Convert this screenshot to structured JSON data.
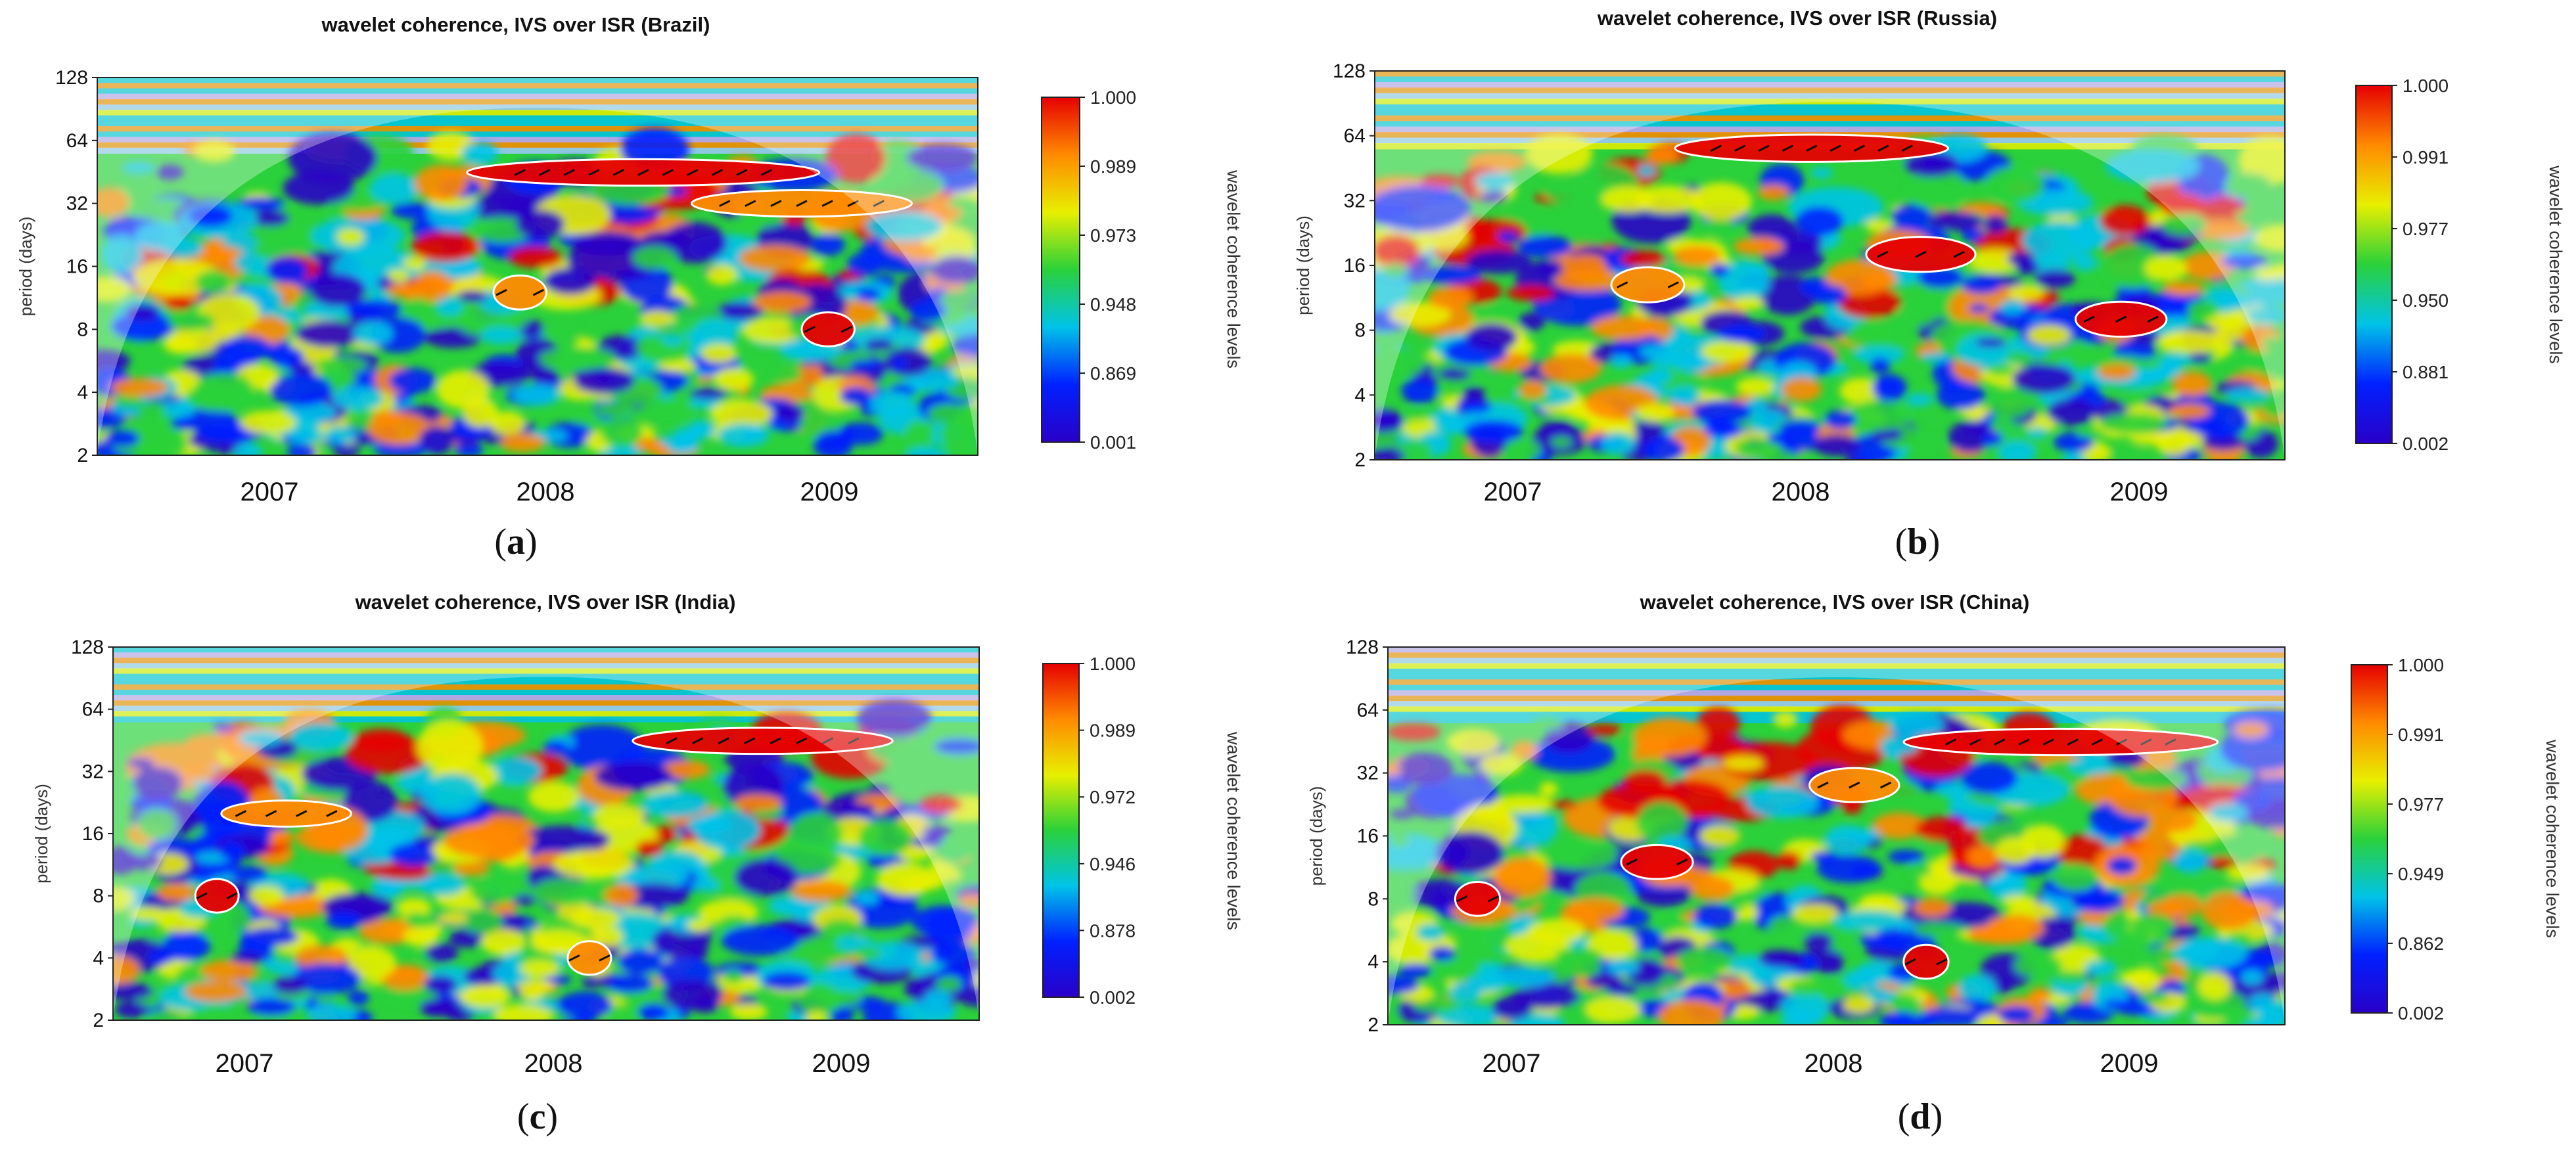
{
  "colors": {
    "max": "#e60000",
    "high": "#ff8a00",
    "mid_high": "#e8ef00",
    "mid": "#2ad13a",
    "mid_low": "#00c3e8",
    "low": "#0020ff",
    "min": "#2a00c8",
    "arrow": "#111111",
    "contour": "#ffffff"
  },
  "chart_data": [
    {
      "type": "heatmap",
      "title": "wavelet coherence, IVS over ISR (Brazil)",
      "ylabel": "period (days)",
      "colorbar_label": "wavelet coherence levels",
      "caption_letter": "a",
      "yticks": [
        "128",
        "64",
        "32",
        "16",
        "8",
        "4",
        "2"
      ],
      "ylim": [
        2,
        128
      ],
      "xticks": [
        "2007",
        "2008",
        "2009"
      ],
      "colorbar_ticks": [
        "1.000",
        "0.989",
        "0.973",
        "0.948",
        "0.869",
        "0.001"
      ],
      "features": [
        {
          "label": "band",
          "x": 0.62,
          "y": 45,
          "span": 0.4,
          "level": 1.0
        },
        {
          "label": "band",
          "x": 0.8,
          "y": 32,
          "span": 0.25,
          "level": 0.985
        },
        {
          "label": "blob",
          "x": 0.48,
          "y": 12,
          "span": 0.06,
          "level": 0.99
        },
        {
          "label": "blob",
          "x": 0.83,
          "y": 8,
          "span": 0.06,
          "level": 1.0
        }
      ]
    },
    {
      "type": "heatmap",
      "title": "wavelet coherence, IVS over ISR (Russia)",
      "ylabel": "period (days)",
      "colorbar_label": "wavelet coherence levels",
      "caption_letter": "b",
      "yticks": [
        "128",
        "64",
        "32",
        "16",
        "8",
        "4",
        "2"
      ],
      "ylim": [
        2,
        128
      ],
      "xticks": [
        "2007",
        "2008",
        "2009"
      ],
      "colorbar_ticks": [
        "1.000",
        "0.991",
        "0.977",
        "0.950",
        "0.881",
        "0.002"
      ],
      "features": [
        {
          "label": "band",
          "x": 0.48,
          "y": 56,
          "span": 0.3,
          "level": 1.0
        },
        {
          "label": "blob",
          "x": 0.6,
          "y": 18,
          "span": 0.12,
          "level": 1.0
        },
        {
          "label": "blob",
          "x": 0.82,
          "y": 9,
          "span": 0.1,
          "level": 1.0
        },
        {
          "label": "blob",
          "x": 0.3,
          "y": 13,
          "span": 0.08,
          "level": 0.99
        }
      ]
    },
    {
      "type": "heatmap",
      "title": "wavelet coherence, IVS over ISR (India)",
      "ylabel": "period (days)",
      "colorbar_label": "wavelet coherence levels",
      "caption_letter": "c",
      "yticks": [
        "128",
        "64",
        "32",
        "16",
        "8",
        "4",
        "2"
      ],
      "ylim": [
        2,
        128
      ],
      "xticks": [
        "2007",
        "2008",
        "2009"
      ],
      "colorbar_ticks": [
        "1.000",
        "0.989",
        "0.972",
        "0.946",
        "0.878",
        "0.002"
      ],
      "features": [
        {
          "label": "band",
          "x": 0.75,
          "y": 45,
          "span": 0.3,
          "level": 1.0
        },
        {
          "label": "band",
          "x": 0.2,
          "y": 20,
          "span": 0.15,
          "level": 0.99
        },
        {
          "label": "blob",
          "x": 0.12,
          "y": 8,
          "span": 0.05,
          "level": 1.0
        },
        {
          "label": "blob",
          "x": 0.55,
          "y": 4,
          "span": 0.05,
          "level": 0.99
        }
      ]
    },
    {
      "type": "heatmap",
      "title": "wavelet coherence, IVS over ISR (China)",
      "ylabel": "period (days)",
      "colorbar_label": "wavelet coherence levels",
      "caption_letter": "d",
      "yticks": [
        "128",
        "64",
        "32",
        "16",
        "8",
        "4",
        "2"
      ],
      "ylim": [
        2,
        128
      ],
      "xticks": [
        "2007",
        "2008",
        "2009"
      ],
      "colorbar_ticks": [
        "1.000",
        "0.991",
        "0.977",
        "0.949",
        "0.862",
        "0.002"
      ],
      "features": [
        {
          "label": "band",
          "x": 0.75,
          "y": 45,
          "span": 0.35,
          "level": 1.0
        },
        {
          "label": "blob",
          "x": 0.52,
          "y": 28,
          "span": 0.1,
          "level": 0.99
        },
        {
          "label": "blob",
          "x": 0.3,
          "y": 12,
          "span": 0.08,
          "level": 1.0
        },
        {
          "label": "blob",
          "x": 0.1,
          "y": 8,
          "span": 0.05,
          "level": 1.0
        },
        {
          "label": "blob",
          "x": 0.6,
          "y": 4,
          "span": 0.05,
          "level": 1.0
        }
      ]
    }
  ]
}
